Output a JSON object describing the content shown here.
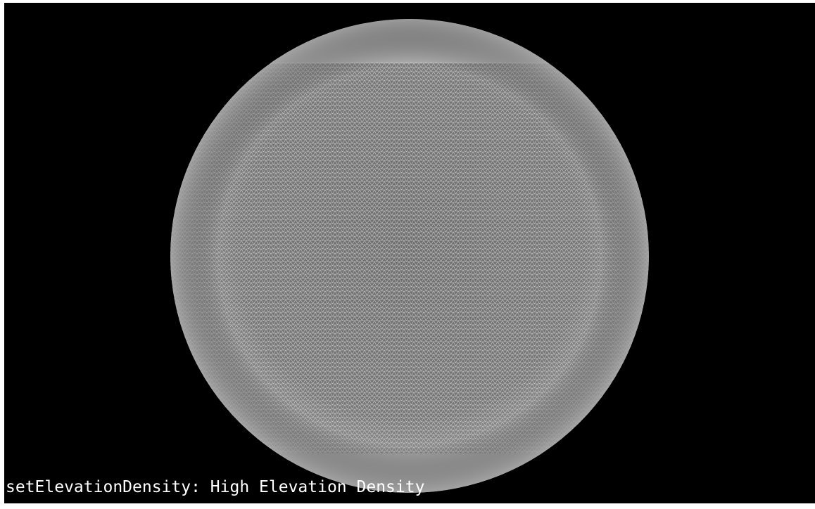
{
  "caption": "setElevationDensity: High Elevation Density"
}
